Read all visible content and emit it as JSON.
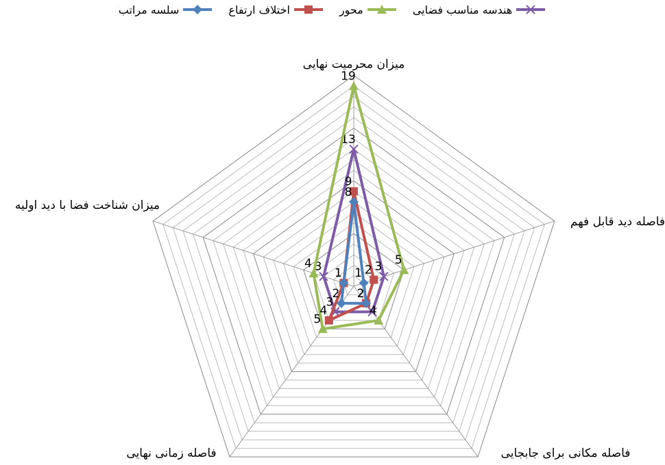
{
  "chart_data": {
    "type": "radar",
    "categories": [
      "میزان محرمیت نهایی",
      "فاصله دید قابل فهم",
      "فاصله مکانی برای جابجایی",
      "فاصله زمانی نهایی",
      "میزان شناخت فضا با دید اولیه"
    ],
    "series": [
      {
        "name": "هندسه مناسب فضایی",
        "color": "#7d5ba6",
        "marker": "x",
        "values": [
          13,
          3,
          3,
          3,
          3
        ]
      },
      {
        "name": "محور",
        "color": "#9bbb59",
        "marker": "triangle",
        "values": [
          19,
          5,
          4,
          5,
          4
        ]
      },
      {
        "name": "اختلاف ارتفاع",
        "color": "#c0504d",
        "marker": "square",
        "values": [
          9,
          2,
          2,
          4,
          1
        ]
      },
      {
        "name": "سلسه مراتب",
        "color": "#4f81bd",
        "marker": "diamond",
        "values": [
          8,
          1,
          2,
          2,
          1
        ]
      }
    ],
    "ylim": [
      0,
      20
    ],
    "grid_rings": 20,
    "legend": "top"
  }
}
